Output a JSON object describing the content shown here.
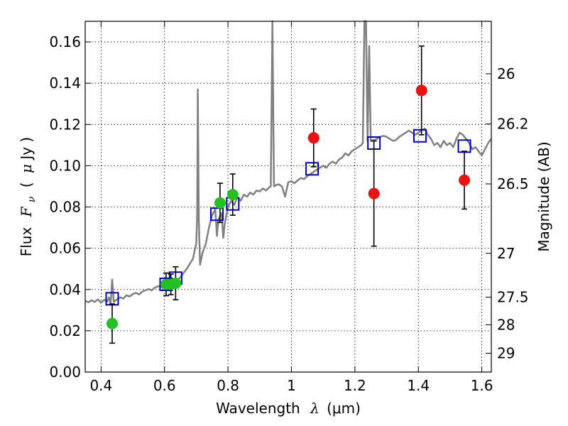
{
  "chart_data": {
    "type": "scatter",
    "x_label": {
      "prefix": "Wavelength",
      "symbol": "λ",
      "unit": "(μm)"
    },
    "y_label": {
      "prefix": "Flux",
      "symbol": "F",
      "subscript": "ν",
      "unit_open": "(",
      "unit_mu": "μ",
      "unit_rest": "Jy )"
    },
    "y2_label": "Magnitude (AB)",
    "xlim": [
      0.35,
      1.63
    ],
    "ylim": [
      0.0,
      0.17
    ],
    "x_ticks": [
      {
        "value": 0.4,
        "label": "0.4"
      },
      {
        "value": 0.6,
        "label": "0.6"
      },
      {
        "value": 0.8,
        "label": "0.8"
      },
      {
        "value": 1.0,
        "label": "1"
      },
      {
        "value": 1.2,
        "label": "1.2"
      },
      {
        "value": 1.4,
        "label": "1.4"
      },
      {
        "value": 1.6,
        "label": "1.6"
      }
    ],
    "y_ticks": [
      {
        "value": 0.0,
        "label": "0.00"
      },
      {
        "value": 0.02,
        "label": "0.02"
      },
      {
        "value": 0.04,
        "label": "0.04"
      },
      {
        "value": 0.06,
        "label": "0.06"
      },
      {
        "value": 0.08,
        "label": "0.08"
      },
      {
        "value": 0.1,
        "label": "0.10"
      },
      {
        "value": 0.12,
        "label": "0.12"
      },
      {
        "value": 0.14,
        "label": "0.14"
      },
      {
        "value": 0.16,
        "label": "0.16"
      }
    ],
    "y2_ticks": [
      {
        "mag": 26.0,
        "label": "26"
      },
      {
        "mag": 26.2,
        "label": "26.2"
      },
      {
        "mag": 26.5,
        "label": "26.5"
      },
      {
        "mag": 27.0,
        "label": "27"
      },
      {
        "mag": 27.5,
        "label": "27.5"
      },
      {
        "mag": 28.0,
        "label": "28"
      },
      {
        "mag": 29.0,
        "label": "29"
      }
    ],
    "grid": true,
    "colors": {
      "spectrum": "#808080",
      "green": "#22c022",
      "red": "#ee1111",
      "model": "#0000cc",
      "errorbar": "#000000"
    },
    "spectrum": [
      [
        0.35,
        0.0345
      ],
      [
        0.36,
        0.0338
      ],
      [
        0.37,
        0.0348
      ],
      [
        0.38,
        0.034
      ],
      [
        0.39,
        0.0352
      ],
      [
        0.4,
        0.0336
      ],
      [
        0.41,
        0.035
      ],
      [
        0.42,
        0.0342
      ],
      [
        0.425,
        0.0362
      ],
      [
        0.43,
        0.0332
      ],
      [
        0.435,
        0.0448
      ],
      [
        0.44,
        0.034
      ],
      [
        0.45,
        0.0352
      ],
      [
        0.46,
        0.0362
      ],
      [
        0.47,
        0.0356
      ],
      [
        0.48,
        0.0372
      ],
      [
        0.49,
        0.0366
      ],
      [
        0.5,
        0.0378
      ],
      [
        0.51,
        0.0384
      ],
      [
        0.52,
        0.0376
      ],
      [
        0.53,
        0.039
      ],
      [
        0.54,
        0.0396
      ],
      [
        0.55,
        0.0402
      ],
      [
        0.56,
        0.0396
      ],
      [
        0.57,
        0.041
      ],
      [
        0.58,
        0.0416
      ],
      [
        0.59,
        0.0412
      ],
      [
        0.6,
        0.0424
      ],
      [
        0.61,
        0.0428
      ],
      [
        0.62,
        0.0422
      ],
      [
        0.63,
        0.0436
      ],
      [
        0.64,
        0.044
      ],
      [
        0.65,
        0.046
      ],
      [
        0.66,
        0.048
      ],
      [
        0.67,
        0.05
      ],
      [
        0.68,
        0.0525
      ],
      [
        0.69,
        0.055
      ],
      [
        0.695,
        0.059
      ],
      [
        0.7,
        0.062
      ],
      [
        0.703,
        0.076
      ],
      [
        0.705,
        0.137
      ],
      [
        0.708,
        0.074
      ],
      [
        0.712,
        0.052
      ],
      [
        0.72,
        0.058
      ],
      [
        0.73,
        0.062
      ],
      [
        0.74,
        0.07
      ],
      [
        0.75,
        0.076
      ],
      [
        0.76,
        0.079
      ],
      [
        0.765,
        0.066
      ],
      [
        0.77,
        0.074
      ],
      [
        0.78,
        0.077
      ],
      [
        0.785,
        0.065
      ],
      [
        0.79,
        0.072
      ],
      [
        0.8,
        0.08
      ],
      [
        0.81,
        0.083
      ],
      [
        0.82,
        0.081
      ],
      [
        0.83,
        0.085
      ],
      [
        0.84,
        0.083
      ],
      [
        0.85,
        0.086
      ],
      [
        0.86,
        0.085
      ],
      [
        0.87,
        0.087
      ],
      [
        0.88,
        0.086
      ],
      [
        0.89,
        0.088
      ],
      [
        0.9,
        0.0875
      ],
      [
        0.91,
        0.089
      ],
      [
        0.92,
        0.088
      ],
      [
        0.93,
        0.0895
      ],
      [
        0.935,
        0.09
      ],
      [
        0.94,
        0.17
      ],
      [
        0.945,
        0.09
      ],
      [
        0.95,
        0.0905
      ],
      [
        0.96,
        0.091
      ],
      [
        0.97,
        0.09
      ],
      [
        0.98,
        0.085
      ],
      [
        0.99,
        0.092
      ],
      [
        1.0,
        0.0925
      ],
      [
        1.01,
        0.0915
      ],
      [
        1.02,
        0.093
      ],
      [
        1.03,
        0.094
      ],
      [
        1.04,
        0.0935
      ],
      [
        1.05,
        0.095
      ],
      [
        1.06,
        0.096
      ],
      [
        1.07,
        0.097
      ],
      [
        1.08,
        0.098
      ],
      [
        1.09,
        0.099
      ],
      [
        1.1,
        0.1
      ],
      [
        1.11,
        0.099
      ],
      [
        1.12,
        0.101
      ],
      [
        1.13,
        0.102
      ],
      [
        1.14,
        0.101
      ],
      [
        1.15,
        0.103
      ],
      [
        1.16,
        0.104
      ],
      [
        1.17,
        0.106
      ],
      [
        1.18,
        0.105
      ],
      [
        1.19,
        0.107
      ],
      [
        1.2,
        0.108
      ],
      [
        1.21,
        0.109
      ],
      [
        1.22,
        0.11
      ],
      [
        1.225,
        0.111
      ],
      [
        1.23,
        0.17
      ],
      [
        1.235,
        0.17
      ],
      [
        1.24,
        0.112
      ],
      [
        1.245,
        0.158
      ],
      [
        1.25,
        0.112
      ],
      [
        1.26,
        0.1125
      ],
      [
        1.27,
        0.113
      ],
      [
        1.28,
        0.114
      ],
      [
        1.29,
        0.1145
      ],
      [
        1.3,
        0.114
      ],
      [
        1.31,
        0.113
      ],
      [
        1.32,
        0.112
      ],
      [
        1.33,
        0.1125
      ],
      [
        1.34,
        0.114
      ],
      [
        1.35,
        0.115
      ],
      [
        1.36,
        0.116
      ],
      [
        1.37,
        0.117
      ],
      [
        1.38,
        0.116
      ],
      [
        1.39,
        0.115
      ],
      [
        1.4,
        0.116
      ],
      [
        1.41,
        0.117
      ],
      [
        1.42,
        0.118
      ],
      [
        1.43,
        0.115
      ],
      [
        1.44,
        0.113
      ],
      [
        1.45,
        0.11
      ],
      [
        1.46,
        0.111
      ],
      [
        1.47,
        0.109
      ],
      [
        1.48,
        0.112
      ],
      [
        1.49,
        0.11
      ],
      [
        1.5,
        0.111
      ],
      [
        1.51,
        0.109
      ],
      [
        1.52,
        0.113
      ],
      [
        1.53,
        0.116
      ],
      [
        1.54,
        0.115
      ],
      [
        1.55,
        0.113
      ],
      [
        1.56,
        0.111
      ],
      [
        1.57,
        0.108
      ],
      [
        1.58,
        0.109
      ],
      [
        1.59,
        0.107
      ],
      [
        1.6,
        0.105
      ],
      [
        1.61,
        0.108
      ],
      [
        1.62,
        0.111
      ],
      [
        1.63,
        0.113
      ]
    ],
    "green_points": [
      {
        "x": 0.435,
        "y": 0.0235,
        "err": 0.0095
      },
      {
        "x": 0.605,
        "y": 0.0425,
        "err": 0.0055
      },
      {
        "x": 0.62,
        "y": 0.0425,
        "err": 0.005
      },
      {
        "x": 0.635,
        "y": 0.043,
        "err": 0.008
      },
      {
        "x": 0.775,
        "y": 0.082,
        "err": 0.0095
      },
      {
        "x": 0.815,
        "y": 0.086,
        "err": 0.01
      }
    ],
    "red_points": [
      {
        "x": 1.07,
        "y": 0.1135,
        "err": 0.014
      },
      {
        "x": 1.26,
        "y": 0.0865,
        "err": 0.0255
      },
      {
        "x": 1.41,
        "y": 0.1365,
        "err": 0.0215
      },
      {
        "x": 1.545,
        "y": 0.093,
        "err": 0.014
      }
    ],
    "model_points": [
      {
        "x": 0.435,
        "y": 0.0355
      },
      {
        "x": 0.605,
        "y": 0.0425
      },
      {
        "x": 0.635,
        "y": 0.0455
      },
      {
        "x": 0.765,
        "y": 0.0765
      },
      {
        "x": 0.815,
        "y": 0.0815
      },
      {
        "x": 1.065,
        "y": 0.0985
      },
      {
        "x": 1.26,
        "y": 0.111
      },
      {
        "x": 1.405,
        "y": 0.1145
      },
      {
        "x": 1.545,
        "y": 0.1095
      }
    ]
  }
}
